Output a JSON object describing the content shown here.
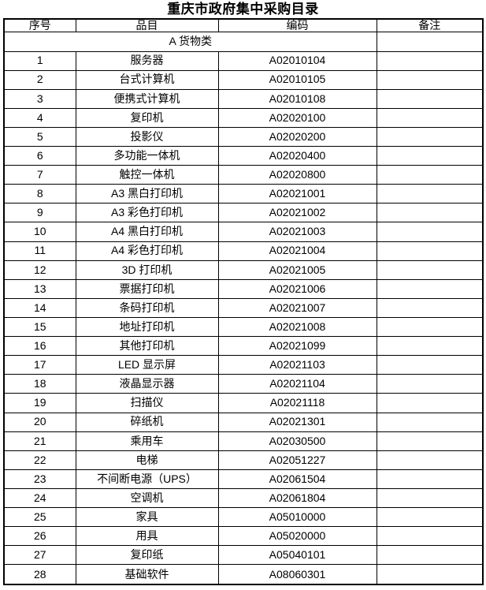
{
  "title": "重庆市政府集中采购目录",
  "table": {
    "headers": [
      "序号",
      "品目",
      "编码",
      "备注"
    ],
    "category_row": {
      "label": "A 货物类",
      "remark": ""
    },
    "rows": [
      {
        "no": "1",
        "item": "服务器",
        "code": "A02010104",
        "remark": ""
      },
      {
        "no": "2",
        "item": "台式计算机",
        "code": "A02010105",
        "remark": ""
      },
      {
        "no": "3",
        "item": "便携式计算机",
        "code": "A02010108",
        "remark": ""
      },
      {
        "no": "4",
        "item": "复印机",
        "code": "A02020100",
        "remark": ""
      },
      {
        "no": "5",
        "item": "投影仪",
        "code": "A02020200",
        "remark": ""
      },
      {
        "no": "6",
        "item": "多功能一体机",
        "code": "A02020400",
        "remark": ""
      },
      {
        "no": "7",
        "item": "触控一体机",
        "code": "A02020800",
        "remark": ""
      },
      {
        "no": "8",
        "item": "A3 黑白打印机",
        "code": "A02021001",
        "remark": ""
      },
      {
        "no": "9",
        "item": "A3 彩色打印机",
        "code": "A02021002",
        "remark": ""
      },
      {
        "no": "10",
        "item": "A4 黑白打印机",
        "code": "A02021003",
        "remark": ""
      },
      {
        "no": "11",
        "item": "A4 彩色打印机",
        "code": "A02021004",
        "remark": ""
      },
      {
        "no": "12",
        "item": "3D 打印机",
        "code": "A02021005",
        "remark": ""
      },
      {
        "no": "13",
        "item": "票据打印机",
        "code": "A02021006",
        "remark": ""
      },
      {
        "no": "14",
        "item": "条码打印机",
        "code": "A02021007",
        "remark": ""
      },
      {
        "no": "15",
        "item": "地址打印机",
        "code": "A02021008",
        "remark": ""
      },
      {
        "no": "16",
        "item": "其他打印机",
        "code": "A02021099",
        "remark": ""
      },
      {
        "no": "17",
        "item": "LED 显示屏",
        "code": "A02021103",
        "remark": ""
      },
      {
        "no": "18",
        "item": "液晶显示器",
        "code": "A02021104",
        "remark": ""
      },
      {
        "no": "19",
        "item": "扫描仪",
        "code": "A02021118",
        "remark": ""
      },
      {
        "no": "20",
        "item": "碎纸机",
        "code": "A02021301",
        "remark": ""
      },
      {
        "no": "21",
        "item": "乘用车",
        "code": "A02030500",
        "remark": ""
      },
      {
        "no": "22",
        "item": "电梯",
        "code": "A02051227",
        "remark": ""
      },
      {
        "no": "23",
        "item": "不间断电源（UPS）",
        "code": "A02061504",
        "remark": ""
      },
      {
        "no": "24",
        "item": "空调机",
        "code": "A02061804",
        "remark": ""
      },
      {
        "no": "25",
        "item": "家具",
        "code": "A05010000",
        "remark": ""
      },
      {
        "no": "26",
        "item": "用具",
        "code": "A05020000",
        "remark": ""
      },
      {
        "no": "27",
        "item": "复印纸",
        "code": "A05040101",
        "remark": ""
      },
      {
        "no": "28",
        "item": "基础软件",
        "code": "A08060301",
        "remark": ""
      }
    ]
  }
}
